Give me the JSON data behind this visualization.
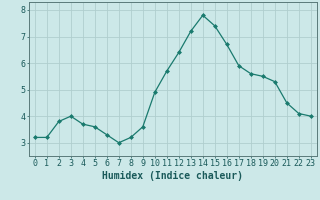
{
  "x": [
    0,
    1,
    2,
    3,
    4,
    5,
    6,
    7,
    8,
    9,
    10,
    11,
    12,
    13,
    14,
    15,
    16,
    17,
    18,
    19,
    20,
    21,
    22,
    23
  ],
  "y": [
    3.2,
    3.2,
    3.8,
    4.0,
    3.7,
    3.6,
    3.3,
    3.0,
    3.2,
    3.6,
    4.9,
    5.7,
    6.4,
    7.2,
    7.8,
    7.4,
    6.7,
    5.9,
    5.6,
    5.5,
    5.3,
    4.5,
    4.1,
    4.0
  ],
  "xlabel": "Humidex (Indice chaleur)",
  "ylim": [
    2.5,
    8.3
  ],
  "xlim": [
    -0.5,
    23.5
  ],
  "yticks": [
    3,
    4,
    5,
    6,
    7,
    8
  ],
  "xticks": [
    0,
    1,
    2,
    3,
    4,
    5,
    6,
    7,
    8,
    9,
    10,
    11,
    12,
    13,
    14,
    15,
    16,
    17,
    18,
    19,
    20,
    21,
    22,
    23
  ],
  "line_color": "#1a7a6e",
  "marker_color": "#1a7a6e",
  "bg_color": "#cce8e8",
  "grid_color": "#b0cece",
  "axis_color": "#5a7a7a",
  "tick_color": "#1a5a5a",
  "xlabel_color": "#1a5a5a",
  "font_size": 6.0,
  "xlabel_fontsize": 7.0
}
